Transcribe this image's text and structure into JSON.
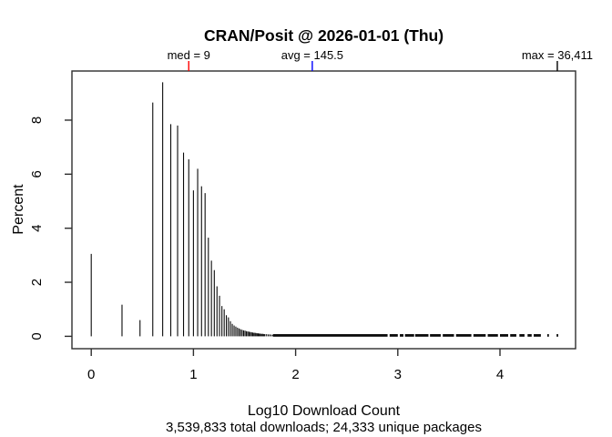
{
  "title": "CRAN/Posit @ 2026-01-01 (Thu)",
  "annotations": {
    "med": {
      "label": "med = 9",
      "value": 9,
      "log_x": 0.954,
      "color": "#ff0000"
    },
    "avg": {
      "label": "avg = 145.5",
      "value": 145.5,
      "log_x": 2.163,
      "color": "#0000ff"
    },
    "max": {
      "label": "max = 36,411",
      "value": 36411,
      "log_x": 4.561,
      "color": "#000000"
    }
  },
  "x_axis": {
    "label": "Log10 Download Count",
    "ticks": [
      0,
      1,
      2,
      3,
      4
    ],
    "lim": [
      -0.19,
      4.75
    ]
  },
  "y_axis": {
    "label": "Percent",
    "ticks": [
      0,
      2,
      4,
      6,
      8
    ],
    "lim": [
      0,
      9.8
    ]
  },
  "footer": "3,539,833 total downloads; 24,333 unique packages",
  "colors": {
    "spike": "#0a0a0a",
    "axis": "#2e2e2e",
    "background": "#ffffff"
  },
  "chart_data": {
    "type": "bar",
    "subtype": "spike-histogram",
    "title": "CRAN/Posit @ 2026-01-01 (Thu)",
    "xlabel": "Log10 Download Count",
    "ylabel": "Percent",
    "xlim": [
      -0.19,
      4.75
    ],
    "ylim": [
      0,
      9.8
    ],
    "grid": false,
    "note": "percent of packages vs log10 of download count; one spike per integer download count n at x=log10(n)",
    "spikes": [
      [
        1,
        3.05
      ],
      [
        2,
        1.17
      ],
      [
        3,
        0.6
      ],
      [
        4,
        8.65
      ],
      [
        5,
        9.4
      ],
      [
        6,
        7.85
      ],
      [
        7,
        7.8
      ],
      [
        8,
        6.8
      ],
      [
        9,
        6.55
      ],
      [
        10,
        5.4
      ],
      [
        11,
        6.2
      ],
      [
        12,
        5.55
      ],
      [
        13,
        5.3
      ],
      [
        14,
        3.65
      ],
      [
        15,
        2.8
      ],
      [
        16,
        2.45
      ],
      [
        17,
        1.85
      ],
      [
        18,
        1.5
      ],
      [
        19,
        1.12
      ],
      [
        20,
        1.0
      ],
      [
        21,
        0.78
      ],
      [
        22,
        0.7
      ],
      [
        23,
        0.56
      ],
      [
        24,
        0.46
      ],
      [
        25,
        0.4
      ],
      [
        26,
        0.36
      ],
      [
        27,
        0.32
      ],
      [
        28,
        0.29
      ],
      [
        29,
        0.26
      ],
      [
        30,
        0.24
      ],
      [
        31,
        0.22
      ],
      [
        32,
        0.21
      ],
      [
        33,
        0.19
      ],
      [
        34,
        0.18
      ],
      [
        35,
        0.17
      ],
      [
        36,
        0.16
      ],
      [
        37,
        0.15
      ],
      [
        38,
        0.14
      ],
      [
        39,
        0.13
      ],
      [
        40,
        0.13
      ],
      [
        41,
        0.12
      ],
      [
        42,
        0.11
      ],
      [
        43,
        0.11
      ],
      [
        44,
        0.1
      ],
      [
        45,
        0.1
      ],
      [
        46,
        0.09
      ],
      [
        47,
        0.09
      ],
      [
        48,
        0.09
      ],
      [
        49,
        0.08
      ],
      [
        50,
        0.08
      ],
      [
        52,
        0.08
      ],
      [
        54,
        0.07
      ],
      [
        56,
        0.07
      ],
      [
        58,
        0.06
      ],
      [
        60,
        0.06
      ]
    ],
    "tail_runs": [
      [
        1.78,
        2.9
      ],
      [
        2.92,
        3.0
      ],
      [
        3.02,
        3.055
      ],
      [
        3.07,
        3.16
      ],
      [
        3.17,
        3.3
      ],
      [
        3.315,
        3.42
      ],
      [
        3.44,
        3.55
      ],
      [
        3.57,
        3.72
      ],
      [
        3.74,
        3.86
      ],
      [
        3.88,
        3.98
      ],
      [
        4.0,
        4.08
      ],
      [
        4.1,
        4.16
      ],
      [
        4.19,
        4.24
      ],
      [
        4.27,
        4.31
      ],
      [
        4.33,
        4.4
      ]
    ],
    "tail_height_pct": 0.06,
    "tail_points": [
      4.47,
      4.561
    ]
  }
}
